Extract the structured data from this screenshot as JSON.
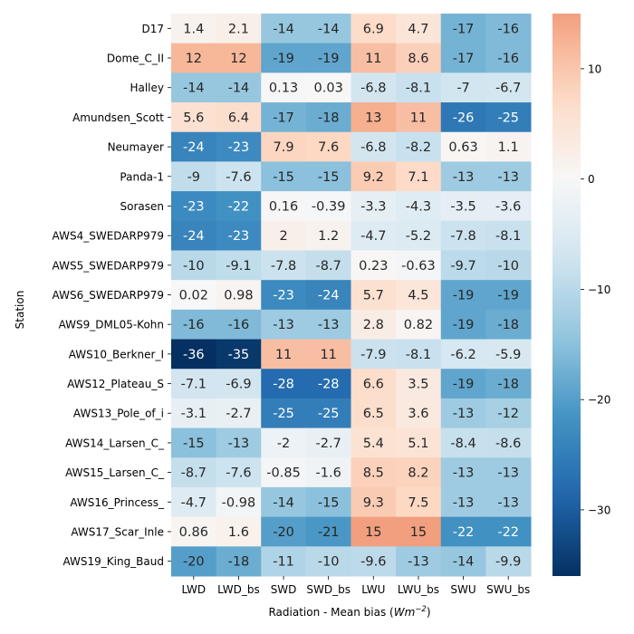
{
  "chart_data": {
    "type": "heatmap",
    "title": "",
    "xlabel": "Radiation - Mean bias (",
    "xlabel_unit_base": "Wm",
    "xlabel_unit_exp": "−2",
    "xlabel_close": ")",
    "ylabel": "Station",
    "x_categories": [
      "LWD",
      "LWD_bs",
      "SWD",
      "SWD_bs",
      "LWU",
      "LWU_bs",
      "SWU",
      "SWU_bs"
    ],
    "y_categories": [
      "D17",
      "Dome_C_II",
      "Halley",
      "Amundsen_Scott",
      "Neumayer",
      "Panda-1",
      "Sorasen",
      "AWS4_SWEDARP979",
      "AWS5_SWEDARP979",
      "AWS6_SWEDARP979",
      "AWS9_DML05-Kohn",
      "AWS10_Berkner_I",
      "AWS12_Plateau_S",
      "AWS13_Pole_of_i",
      "AWS14_Larsen_C_",
      "AWS15_Larsen_C_",
      "AWS16_Princess_",
      "AWS17_Scar_Inle",
      "AWS19_King_Baud"
    ],
    "values": [
      [
        1.4,
        2.1,
        -14,
        -14,
        6.9,
        4.7,
        -17,
        -16
      ],
      [
        12,
        12,
        -19,
        -19,
        11,
        8.6,
        -17,
        -16
      ],
      [
        -14,
        -14,
        0.13,
        0.03,
        -6.8,
        -8.1,
        -7,
        -6.7
      ],
      [
        5.6,
        6.4,
        -17,
        -18,
        13,
        11,
        -26,
        -25
      ],
      [
        -24,
        -23,
        7.9,
        7.6,
        -6.8,
        -8.2,
        0.63,
        1.1
      ],
      [
        -9,
        -7.6,
        -15,
        -15,
        9.2,
        7.1,
        -13,
        -13
      ],
      [
        -23,
        -22,
        0.16,
        -0.39,
        -3.3,
        -4.3,
        -3.5,
        -3.6
      ],
      [
        -24,
        -23,
        2,
        1.2,
        -4.7,
        -5.2,
        -7.8,
        -8.1
      ],
      [
        -10,
        -9.1,
        -7.8,
        -8.7,
        0.23,
        -0.63,
        -9.7,
        -10
      ],
      [
        0.02,
        0.98,
        -23,
        -24,
        5.7,
        4.5,
        -19,
        -19
      ],
      [
        -16,
        -16,
        -13,
        -13,
        2.8,
        0.82,
        -19,
        -18
      ],
      [
        -36,
        -35,
        11,
        11,
        -7.9,
        -8.1,
        -6.2,
        -5.9
      ],
      [
        -7.1,
        -6.9,
        -28,
        -28,
        6.6,
        3.5,
        -19,
        -18
      ],
      [
        -3.1,
        -2.7,
        -25,
        -25,
        6.5,
        3.6,
        -13,
        -12
      ],
      [
        -15,
        -13,
        -2,
        -2.7,
        5.4,
        5.1,
        -8.4,
        -8.6
      ],
      [
        -8.7,
        -7.6,
        -0.85,
        -1.6,
        8.5,
        8.2,
        -13,
        -13
      ],
      [
        -4.7,
        -0.98,
        -14,
        -15,
        9.3,
        7.5,
        -13,
        -13
      ],
      [
        0.86,
        1.6,
        -20,
        -21,
        15,
        15,
        -22,
        -22
      ],
      [
        -20,
        -18,
        -11,
        -10,
        -9.6,
        -13,
        -14,
        -9.9
      ]
    ],
    "colorbar": {
      "vmin": -36,
      "vmax": 15,
      "center": 0,
      "ticks": [
        10,
        0,
        -10,
        -20,
        -30
      ],
      "colormap": "RdBu_r"
    },
    "grid": false,
    "legend": "colorbar-right"
  }
}
